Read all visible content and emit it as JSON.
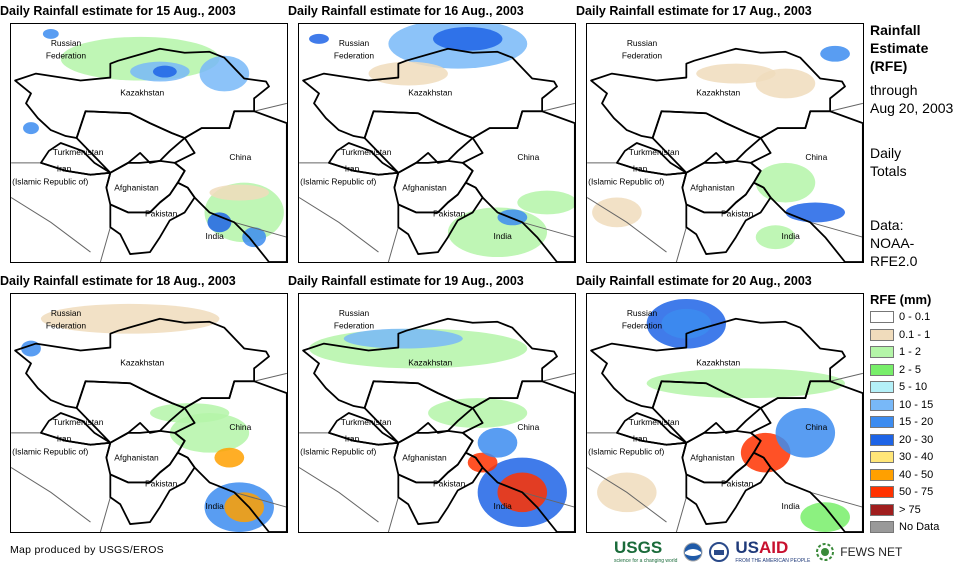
{
  "panels": [
    {
      "title": "Daily Rainfall estimate for 15 Aug., 2003"
    },
    {
      "title": "Daily Rainfall estimate for 16 Aug., 2003"
    },
    {
      "title": "Daily Rainfall estimate for 17 Aug., 2003"
    },
    {
      "title": "Daily Rainfall estimate for 18 Aug., 2003"
    },
    {
      "title": "Daily Rainfall estimate for 19 Aug., 2003"
    },
    {
      "title": "Daily Rainfall estimate for 20 Aug., 2003"
    }
  ],
  "map_labels": {
    "russia1": "Russian",
    "russia2": "Federation",
    "kazakhstan": "Kazakhstan",
    "turkmenistan": "Turkmenistan",
    "iran1": "Iran",
    "iran2": "(Islamic Republic of)",
    "afghanistan": "Afghanistan",
    "pakistan": "Pakistan",
    "china": "China",
    "india": "India"
  },
  "side": {
    "t1": "Rainfall",
    "t2": "Estimate",
    "t3": "(RFE)",
    "through": "through",
    "date": "Aug 20, 2003",
    "daily": "Daily",
    "totals": "Totals",
    "data": "Data:",
    "src1": "NOAA-",
    "src2": "RFE2.0"
  },
  "legend": {
    "title": "RFE (mm)",
    "items": [
      {
        "label": "0 - 0.1",
        "color": "#ffffff"
      },
      {
        "label": "0.1 - 1",
        "color": "#f0dcbc"
      },
      {
        "label": "1 - 2",
        "color": "#b4f5a8"
      },
      {
        "label": "2 - 5",
        "color": "#78ee6a"
      },
      {
        "label": "5 - 10",
        "color": "#b4f0f8"
      },
      {
        "label": "10 - 15",
        "color": "#78b8f8"
      },
      {
        "label": "15 - 20",
        "color": "#3c8cf0"
      },
      {
        "label": "20 - 30",
        "color": "#1e64e6"
      },
      {
        "label": "30 - 40",
        "color": "#ffe678"
      },
      {
        "label": "40 - 50",
        "color": "#ffa000"
      },
      {
        "label": "50 - 75",
        "color": "#ff3200"
      },
      {
        "label": "> 75",
        "color": "#a01e1e"
      },
      {
        "label": "No Data",
        "color": "#999999"
      }
    ]
  },
  "footer": "Map produced by USGS/EROS",
  "logos": {
    "usgs": "USGS",
    "usgs_tag": "science for a changing world",
    "usaid": "USAID",
    "usaid_tag": "FROM THE AMERICAN PEOPLE",
    "fews": "FEWS NET"
  }
}
